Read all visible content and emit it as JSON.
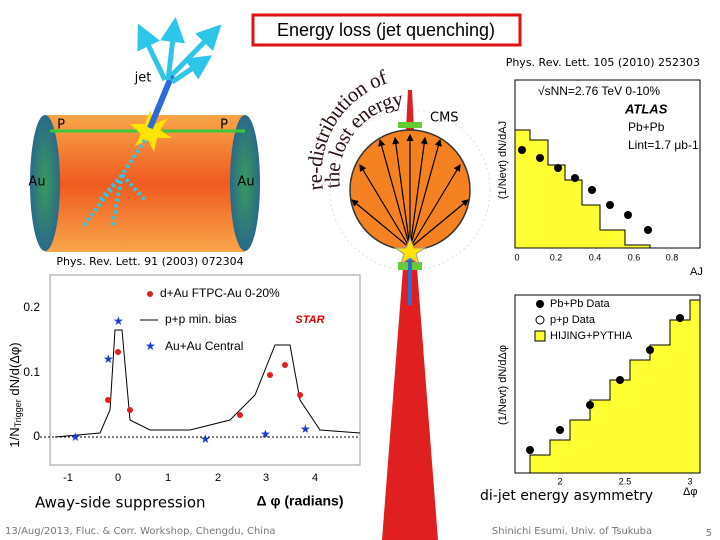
{
  "slide": {
    "title": "Energy loss (jet quenching)",
    "refs": [
      "Phys. Rev. Lett. 105 (2010) 252303",
      "Phys. Rev. Lett. 91 (2003) 072304"
    ],
    "diagram": {
      "jet": "jet",
      "p_left": "P",
      "p_right": "P",
      "au_left": "Au",
      "au_right": "Au",
      "arc_outer": "re-distribution of",
      "arc_inner": "the lost energy",
      "cms": "CMS"
    },
    "star_plot": {
      "ylabel_prefix": "1/N",
      "ylabel_sub": "Trigger",
      "ylabel_rest": " dN/d(Δφ)",
      "yticks": [
        "0.2",
        "0.1",
        "0"
      ],
      "xticks": [
        "-1",
        "0",
        "1",
        "2",
        "3",
        "4"
      ],
      "xlabel": "Δ φ (radians)",
      "legend": [
        "d+Au FTPC-Au 0-20%",
        "p+p min. bias",
        "Au+Au Central"
      ],
      "logo": "STAR"
    },
    "atlas_plot": {
      "energy": "√sNN=2.76 TeV 0-10%",
      "logo": "ATLAS",
      "system": "Pb+Pb",
      "lumi": "Lint=1.7 μb-1",
      "ylabel": "(1/Nevt) dN/dAJ",
      "xticks": [
        "0",
        "0.2",
        "0.4",
        "0.6",
        "0.8"
      ],
      "xlabel": "AJ"
    },
    "dphi_plot": {
      "legend": [
        "Pb+Pb Data",
        "p+p Data",
        "HIJING+PYTHIA"
      ],
      "ylabel": "(1/Nevt) dN/dΔφ",
      "xticks": [
        "2",
        "2.5",
        "3"
      ],
      "xlabel": "Δφ"
    },
    "captions": {
      "left": "Away-side suppression",
      "right": "di-jet energy asymmetry"
    },
    "footer": {
      "left": "13/Aug/2013, Fluc. & Corr. Workshop, Chengdu, China",
      "right": "Shinichi Esumi, Univ. of Tsukuba",
      "page": "5"
    }
  }
}
